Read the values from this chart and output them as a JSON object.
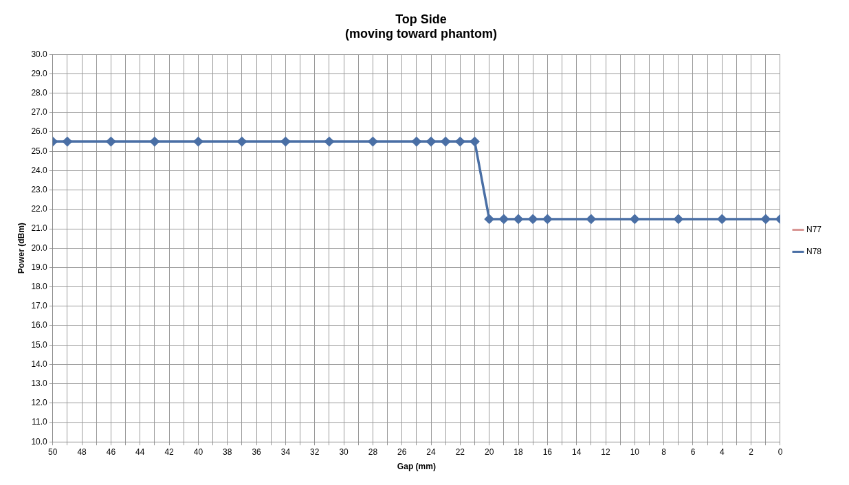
{
  "chart_data": {
    "type": "line",
    "title": "Top Side",
    "subtitle": "(moving toward phantom)",
    "xlabel": "Gap (mm)",
    "ylabel": "Power (dBm)",
    "x": [
      50,
      49,
      46,
      43,
      40,
      37,
      34,
      31,
      28,
      25,
      24,
      23,
      22,
      21,
      20,
      19,
      18,
      17,
      16,
      13,
      10,
      7,
      4,
      1,
      0
    ],
    "series": [
      {
        "name": "N77",
        "color": "#d99694",
        "values": [
          null,
          null,
          null,
          null,
          null,
          null,
          null,
          null,
          null,
          null,
          null,
          null,
          null,
          null,
          null,
          null,
          null,
          null,
          null,
          null,
          null,
          null,
          null,
          null,
          null
        ]
      },
      {
        "name": "N78",
        "color": "#4a6fa5",
        "values": [
          25.5,
          25.5,
          25.5,
          25.5,
          25.5,
          25.5,
          25.5,
          25.5,
          25.5,
          25.5,
          25.5,
          25.5,
          25.5,
          25.5,
          21.5,
          21.5,
          21.5,
          21.5,
          21.5,
          21.5,
          21.5,
          21.5,
          21.5,
          21.5,
          21.5
        ]
      }
    ],
    "xlim": [
      50,
      0
    ],
    "xticks": [
      50,
      {
        "value": 49,
        "label": null
      },
      48,
      {
        "value": 47,
        "label": null
      },
      46,
      {
        "value": 45,
        "label": null
      },
      44,
      {
        "value": 43,
        "label": null
      },
      42,
      {
        "value": 41,
        "label": null
      },
      40,
      {
        "value": 39,
        "label": null
      },
      38,
      {
        "value": 37,
        "label": null
      },
      36,
      {
        "value": 35,
        "label": null
      },
      34,
      {
        "value": 33,
        "label": null
      },
      32,
      {
        "value": 31,
        "label": null
      },
      30,
      {
        "value": 29,
        "label": null
      },
      28,
      {
        "value": 27,
        "label": null
      },
      26,
      {
        "value": 25,
        "label": null
      },
      24,
      {
        "value": 23,
        "label": null
      },
      22,
      {
        "value": 21,
        "label": null
      },
      20,
      {
        "value": 19,
        "label": null
      },
      18,
      {
        "value": 17,
        "label": null
      },
      16,
      {
        "value": 15,
        "label": null
      },
      14,
      {
        "value": 13,
        "label": null
      },
      12,
      {
        "value": 11,
        "label": null
      },
      10,
      {
        "value": 9,
        "label": null
      },
      8,
      {
        "value": 7,
        "label": null
      },
      6,
      {
        "value": 5,
        "label": null
      },
      4,
      {
        "value": 3,
        "label": null
      },
      2,
      {
        "value": 1,
        "label": null
      },
      0
    ],
    "ylim": [
      10,
      30
    ],
    "yticks": [
      {
        "value": 10,
        "label": "10.0"
      },
      {
        "value": 11,
        "label": "11.0"
      },
      {
        "value": 12,
        "label": "12.0"
      },
      {
        "value": 13,
        "label": "13.0"
      },
      {
        "value": 14,
        "label": "14.0"
      },
      {
        "value": 15,
        "label": "15.0"
      },
      {
        "value": 16,
        "label": "16.0"
      },
      {
        "value": 17,
        "label": "17.0"
      },
      {
        "value": 18,
        "label": "18.0"
      },
      {
        "value": 19,
        "label": "19.0"
      },
      {
        "value": 20,
        "label": "20.0"
      },
      {
        "value": 21,
        "label": "21.0"
      },
      {
        "value": 22,
        "label": "22.0"
      },
      {
        "value": 23,
        "label": "23.0"
      },
      {
        "value": 24,
        "label": "24.0"
      },
      {
        "value": 25,
        "label": "25.0"
      },
      {
        "value": 26,
        "label": "26.0"
      },
      {
        "value": 27,
        "label": "27.0"
      },
      {
        "value": 28,
        "label": "28.0"
      },
      {
        "value": 29,
        "label": "29.0"
      },
      {
        "value": 30,
        "label": "30.0"
      }
    ],
    "grid": true,
    "legend": "right",
    "marker": "diamond",
    "line_style": "solid"
  }
}
